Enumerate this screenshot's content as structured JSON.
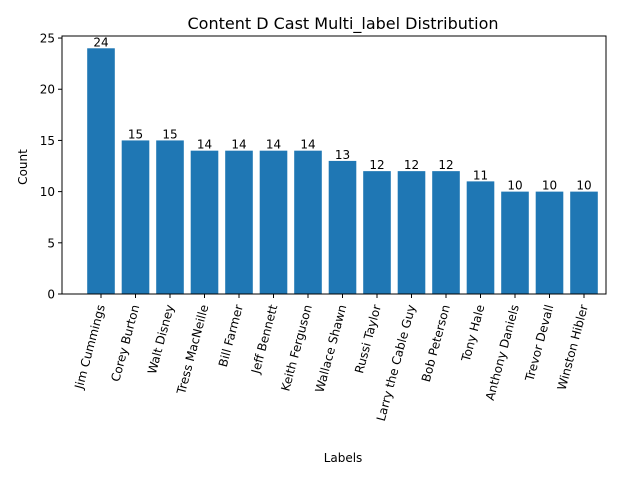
{
  "chart_data": {
    "type": "bar",
    "title": "Content D Cast Multi_label Distribution",
    "xlabel": "Labels",
    "ylabel": "Count",
    "categories": [
      "Jim Cummings",
      "Corey Burton",
      "Walt Disney",
      "Tress MacNeille",
      "Bill Farmer",
      "Jeff Bennett",
      "Keith Ferguson",
      "Wallace Shawn",
      "Russi Taylor",
      "Larry the Cable Guy",
      "Bob Peterson",
      "Tony Hale",
      "Anthony Daniels",
      "Trevor Devall",
      "Winston Hibler"
    ],
    "values": [
      24,
      15,
      15,
      14,
      14,
      14,
      14,
      13,
      12,
      12,
      12,
      11,
      10,
      10,
      10
    ],
    "data_labels": [
      "24",
      "15",
      "15",
      "14",
      "14",
      "14",
      "14",
      "13",
      "12",
      "12",
      "12",
      "11",
      "10",
      "10",
      "10"
    ],
    "yticks": [
      0,
      5,
      10,
      15,
      20,
      25
    ],
    "ytick_labels": [
      "0",
      "5",
      "10",
      "15",
      "20",
      "25"
    ],
    "ylim": [
      0,
      25.2
    ],
    "grid": false,
    "legend": "none",
    "bar_color": "#1f77b4"
  }
}
